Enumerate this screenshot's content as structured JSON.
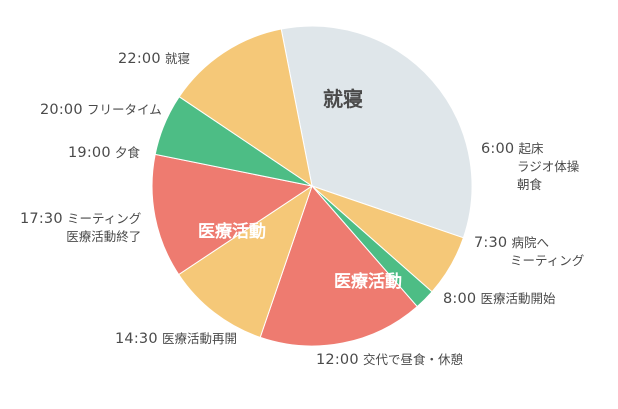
{
  "colors": {
    "sleep": "#dfe6ea",
    "break": "#f5c878",
    "meeting": "#4dbd85",
    "medical": "#ee7b70",
    "text": "#4a4a4a"
  },
  "segments": [
    {
      "name": "sleep",
      "label": "就寝",
      "start_h": 22.0,
      "end_h": 6.0,
      "color_key": "sleep"
    },
    {
      "name": "morning",
      "label": "",
      "start_h": 6.0,
      "end_h": 7.5,
      "color_key": "break"
    },
    {
      "name": "meeting-am",
      "label": "",
      "start_h": 7.5,
      "end_h": 8.0,
      "color_key": "meeting"
    },
    {
      "name": "medical-am",
      "label": "医療活動",
      "start_h": 8.0,
      "end_h": 12.0,
      "color_key": "medical"
    },
    {
      "name": "lunch",
      "label": "",
      "start_h": 12.0,
      "end_h": 14.5,
      "color_key": "break"
    },
    {
      "name": "medical-pm",
      "label": "医療活動",
      "start_h": 14.5,
      "end_h": 17.5,
      "color_key": "medical"
    },
    {
      "name": "meeting-pm",
      "label": "",
      "start_h": 17.5,
      "end_h": 19.0,
      "color_key": "meeting"
    },
    {
      "name": "evening",
      "label": "",
      "start_h": 19.0,
      "end_h": 22.0,
      "color_key": "break"
    }
  ],
  "annotations": {
    "t2200": {
      "time": "22:00",
      "text": "就寝"
    },
    "t2000": {
      "time": "20:00",
      "text": "フリータイム"
    },
    "t1900": {
      "time": "19:00",
      "text": "夕食"
    },
    "t1730": {
      "time": "17:30",
      "text": "ミーティング",
      "text2": "医療活動終了"
    },
    "t1430": {
      "time": "14:30",
      "text": "医療活動再開"
    },
    "t1200": {
      "time": "12:00",
      "text": "交代で昼食・休憩"
    },
    "t0800": {
      "time": "8:00",
      "text": "医療活動開始"
    },
    "t0730": {
      "time": "7:30",
      "text": "病院へ",
      "text2": "ミーティング"
    },
    "t0600": {
      "time": "6:00",
      "text": "起床",
      "text2": "ラジオ体操",
      "text3": "朝食"
    }
  }
}
